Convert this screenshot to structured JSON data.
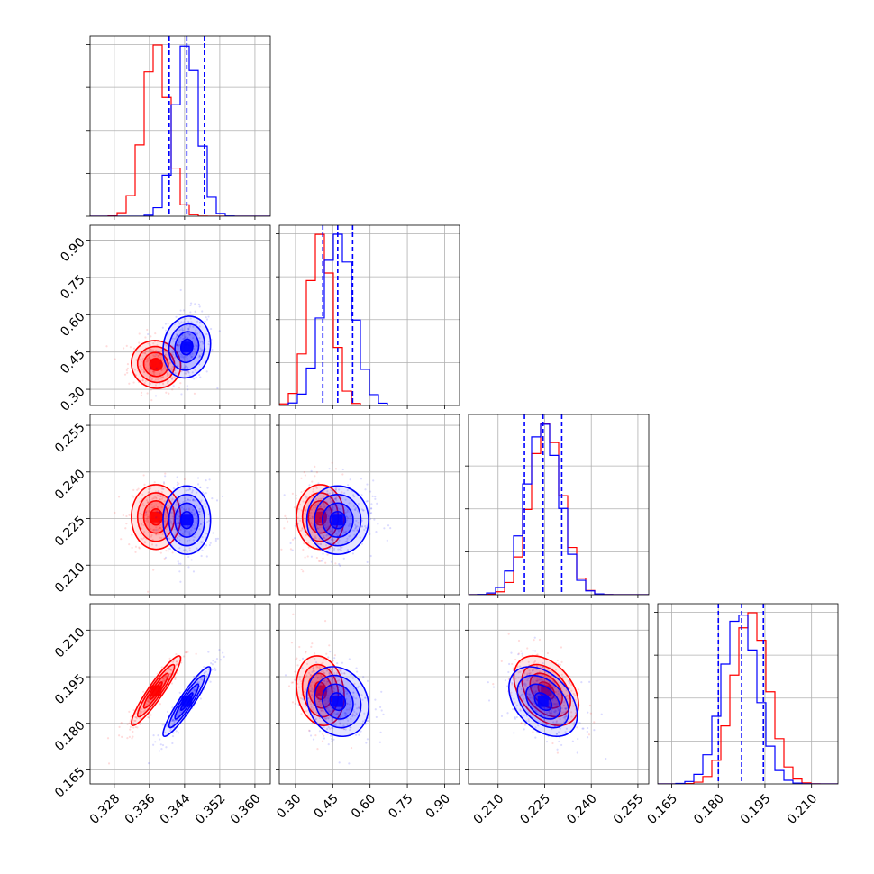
{
  "chart_data": {
    "type": "corner",
    "params": [
      {
        "id": "p0",
        "range": [
          0.3225,
          0.3635
        ],
        "ticks": [
          0.328,
          0.336,
          0.344,
          0.352,
          0.36
        ],
        "tick_labels": [
          "0.328",
          "0.336",
          "0.344",
          "0.352",
          "0.360"
        ]
      },
      {
        "id": "p1",
        "range": [
          0.235,
          0.96
        ],
        "ticks": [
          0.3,
          0.45,
          0.6,
          0.75,
          0.9
        ],
        "tick_labels": [
          "0.30",
          "0.45",
          "0.60",
          "0.75",
          "0.90"
        ]
      },
      {
        "id": "p2",
        "range": [
          0.2005,
          0.2585
        ],
        "ticks": [
          0.21,
          0.225,
          0.24,
          0.255
        ],
        "tick_labels": [
          "0.210",
          "0.225",
          "0.240",
          "0.255"
        ]
      },
      {
        "id": "p3",
        "range": [
          0.1605,
          0.2185
        ],
        "ticks": [
          0.165,
          0.18,
          0.195,
          0.21
        ],
        "tick_labels": [
          "0.165",
          "0.180",
          "0.195",
          "0.210"
        ]
      }
    ],
    "colors": {
      "red": "#ff0000",
      "blue": "#0000ff",
      "quantile_line": "#0000ff"
    },
    "grid": true,
    "quantiles": {
      "p0": [
        0.3405,
        0.3445,
        0.3485
      ],
      "p1": [
        0.41,
        0.47,
        0.53
      ],
      "p2": [
        0.2185,
        0.2245,
        0.2305
      ],
      "p3": [
        0.18,
        0.1875,
        0.1945
      ]
    },
    "series": [
      {
        "color": "red",
        "means": [
          0.3375,
          0.4,
          0.2255,
          0.1905
        ],
        "sds": [
          0.0028,
          0.048,
          0.0052,
          0.0056
        ],
        "corr": {
          "0-1": -0.05,
          "0-2": 0.0,
          "0-3": 0.93,
          "1-2": 0.0,
          "1-3": -0.15,
          "2-3": -0.4
        }
      },
      {
        "color": "blue",
        "means": [
          0.3445,
          0.47,
          0.2245,
          0.187
        ],
        "sds": [
          0.0027,
          0.062,
          0.0055,
          0.0056
        ],
        "corr": {
          "0-1": 0.1,
          "0-2": 0.0,
          "0-3": 0.93,
          "1-2": 0.0,
          "1-3": -0.15,
          "2-3": -0.4
        }
      }
    ]
  }
}
